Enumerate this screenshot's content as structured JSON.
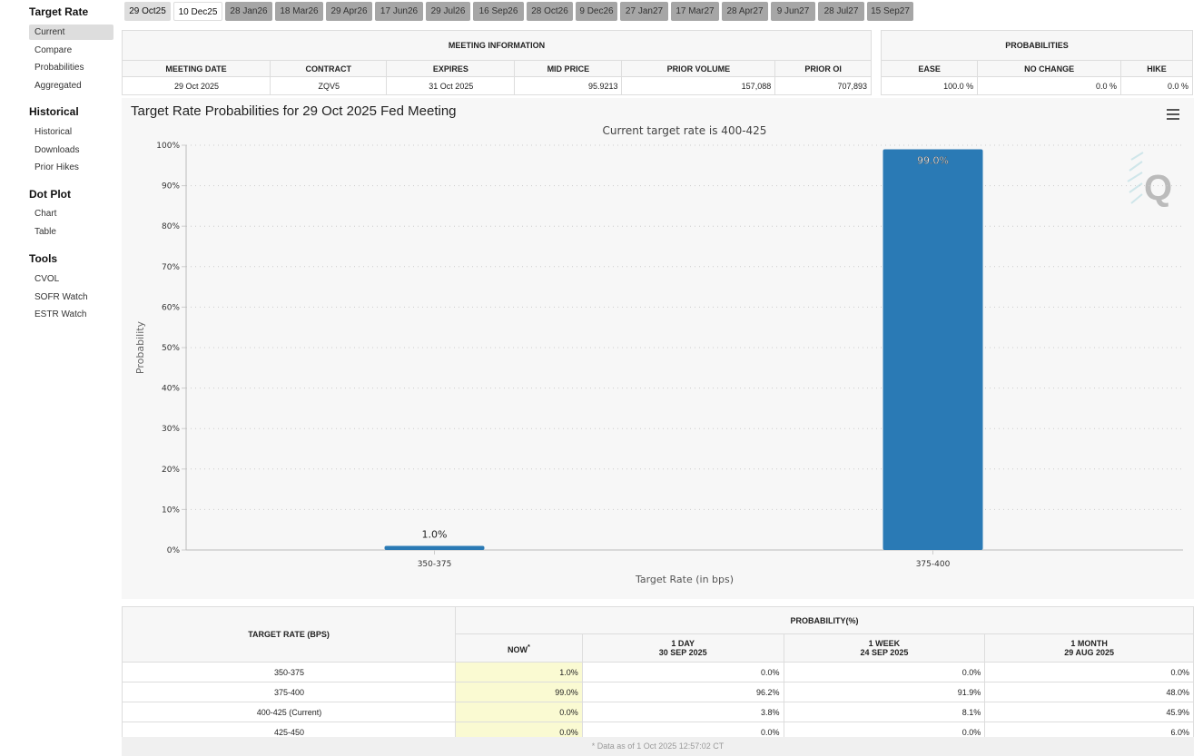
{
  "sidebar": {
    "sections": [
      {
        "title": "Target Rate",
        "items": [
          "Current",
          "Compare",
          "Probabilities",
          "Aggregated"
        ]
      },
      {
        "title": "Historical",
        "items": [
          "Historical",
          "Downloads",
          "Prior Hikes"
        ]
      },
      {
        "title": "Dot Plot",
        "items": [
          "Chart",
          "Table"
        ]
      },
      {
        "title": "Tools",
        "items": [
          "CVOL",
          "SOFR Watch",
          "ESTR Watch"
        ]
      }
    ],
    "active_item": "Current"
  },
  "tabs": [
    "29 Oct25",
    "10 Dec25",
    "28 Jan26",
    "18 Mar26",
    "29 Apr26",
    "17 Jun26",
    "29 Jul26",
    "16 Sep26",
    "28 Oct26",
    "9 Dec26",
    "27 Jan27",
    "17 Mar27",
    "28 Apr27",
    "9 Jun27",
    "28 Jul27",
    "15 Sep27"
  ],
  "meeting_info": {
    "title": "MEETING INFORMATION",
    "headers": [
      "MEETING DATE",
      "CONTRACT",
      "EXPIRES",
      "MID PRICE",
      "PRIOR VOLUME",
      "PRIOR OI"
    ],
    "values": [
      "29 Oct 2025",
      "ZQV5",
      "31 Oct 2025",
      "95.9213",
      "157,088",
      "707,893"
    ]
  },
  "probabilities": {
    "title": "PROBABILITIES",
    "headers": [
      "EASE",
      "NO CHANGE",
      "HIKE"
    ],
    "values": [
      "100.0 %",
      "0.0 %",
      "0.0 %"
    ]
  },
  "chart_data": {
    "type": "bar",
    "title": "Target Rate Probabilities for 29 Oct 2025 Fed Meeting",
    "subtitle": "Current target rate is 400-425",
    "xlabel": "Target Rate (in bps)",
    "ylabel": "Probability",
    "categories": [
      "350-375",
      "375-400"
    ],
    "values": [
      1.0,
      99.0
    ],
    "data_labels": [
      "1.0%",
      "99.0%"
    ],
    "ylim": [
      0,
      100
    ],
    "yticks": [
      "0%",
      "10%",
      "20%",
      "30%",
      "40%",
      "50%",
      "60%",
      "70%",
      "80%",
      "90%",
      "100%"
    ],
    "grid": true,
    "bar_color": "#2a7ab5"
  },
  "bottom_table": {
    "col_rate": "TARGET RATE (BPS)",
    "group": "PROBABILITY(%)",
    "cols": [
      {
        "l1": "NOW",
        "l2": "",
        "mark": "*"
      },
      {
        "l1": "1 DAY",
        "l2": "30 SEP 2025"
      },
      {
        "l1": "1 WEEK",
        "l2": "24 SEP 2025"
      },
      {
        "l1": "1 MONTH",
        "l2": "29 AUG 2025"
      }
    ],
    "rows": [
      {
        "rate": "350-375",
        "vals": [
          "1.0%",
          "0.0%",
          "0.0%",
          "0.0%"
        ]
      },
      {
        "rate": "375-400",
        "vals": [
          "99.0%",
          "96.2%",
          "91.9%",
          "48.0%"
        ]
      },
      {
        "rate": "400-425 (Current)",
        "vals": [
          "0.0%",
          "3.8%",
          "8.1%",
          "45.9%"
        ]
      },
      {
        "rate": "425-450",
        "vals": [
          "0.0%",
          "0.0%",
          "0.0%",
          "6.0%"
        ]
      }
    ],
    "footnote": "* Data as of 1 Oct 2025 12:57:02 CT"
  }
}
